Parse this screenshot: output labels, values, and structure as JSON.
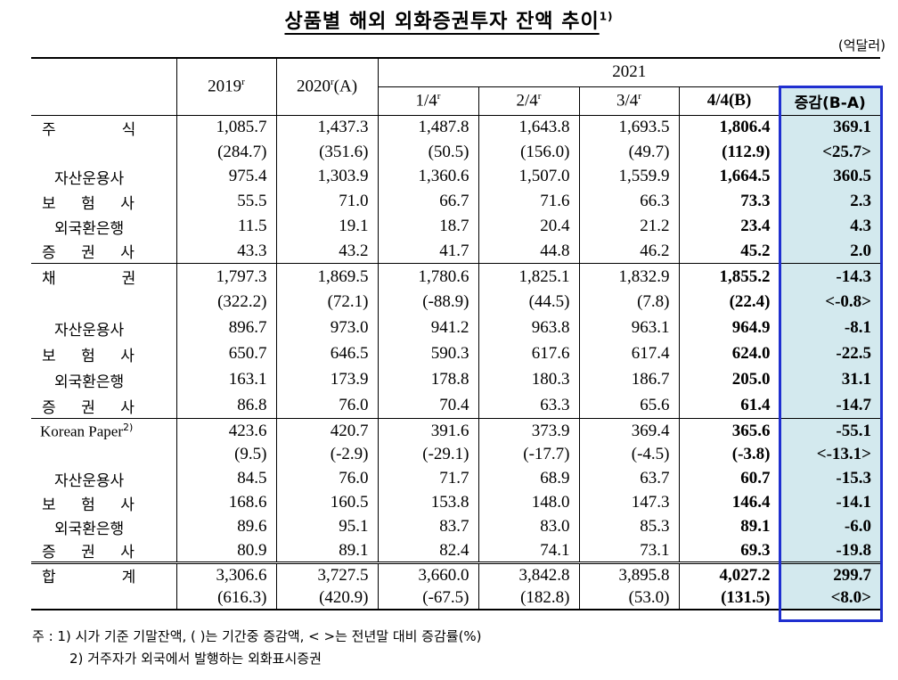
{
  "title": "상품별 해외 외화증권투자 잔액 추이",
  "title_note": "1)",
  "unit": "(억달러)",
  "header": {
    "y2019": "2019",
    "y2019_sup": "r",
    "y2020": "2020",
    "y2020_sup": "r",
    "y2020_suffix": "(A)",
    "y2021": "2021",
    "q1": "1/4",
    "q1_sup": "r",
    "q2": "2/4",
    "q2_sup": "r",
    "q3": "3/4",
    "q3_sup": "r",
    "q4": "4/4(B)",
    "diff": "증감(B-A)"
  },
  "highlight_color": "#1f2fd0",
  "groups": [
    {
      "rows": [
        {
          "label": "주식",
          "spread": true,
          "values": [
            "1,085.7",
            "1,437.3",
            "1,487.8",
            "1,643.8",
            "1,693.5",
            "1,806.4",
            "369.1"
          ]
        },
        {
          "label": "",
          "values": [
            "(284.7)",
            "(351.6)",
            "(50.5)",
            "(156.0)",
            "(49.7)",
            "(112.9)",
            "<25.7>"
          ]
        },
        {
          "label": "자산운용사",
          "values": [
            "975.4",
            "1,303.9",
            "1,360.6",
            "1,507.0",
            "1,559.9",
            "1,664.5",
            "360.5"
          ]
        },
        {
          "label": "보험사",
          "spread": true,
          "values": [
            "55.5",
            "71.0",
            "66.7",
            "71.6",
            "66.3",
            "73.3",
            "2.3"
          ]
        },
        {
          "label": "외국환은행",
          "values": [
            "11.5",
            "19.1",
            "18.7",
            "20.4",
            "21.2",
            "23.4",
            "4.3"
          ]
        },
        {
          "label": "증권사",
          "spread": true,
          "values": [
            "43.3",
            "43.2",
            "41.7",
            "44.8",
            "46.2",
            "45.2",
            "2.0"
          ]
        }
      ]
    },
    {
      "rows": [
        {
          "label": "채권",
          "spread": true,
          "values": [
            "1,797.3",
            "1,869.5",
            "1,780.6",
            "1,825.1",
            "1,832.9",
            "1,855.2",
            "-14.3"
          ]
        },
        {
          "label": "",
          "values": [
            "(322.2)",
            "(72.1)",
            "(-88.9)",
            "(44.5)",
            "(7.8)",
            "(22.4)",
            "<-0.8>"
          ]
        },
        {
          "label": "자산운용사",
          "values": [
            "896.7",
            "973.0",
            "941.2",
            "963.8",
            "963.1",
            "964.9",
            "-8.1"
          ]
        },
        {
          "label": "보험사",
          "spread": true,
          "values": [
            "650.7",
            "646.5",
            "590.3",
            "617.6",
            "617.4",
            "624.0",
            "-22.5"
          ]
        },
        {
          "label": "외국환은행",
          "values": [
            "163.1",
            "173.9",
            "178.8",
            "180.3",
            "186.7",
            "205.0",
            "31.1"
          ]
        },
        {
          "label": "증권사",
          "spread": true,
          "values": [
            "86.8",
            "76.0",
            "70.4",
            "63.3",
            "65.6",
            "61.4",
            "-14.7"
          ]
        }
      ]
    },
    {
      "rows": [
        {
          "label": "Korean Paper",
          "label_sup": "2)",
          "values": [
            "423.6",
            "420.7",
            "391.6",
            "373.9",
            "369.4",
            "365.6",
            "-55.1"
          ]
        },
        {
          "label": "",
          "values": [
            "(9.5)",
            "(-2.9)",
            "(-29.1)",
            "(-17.7)",
            "(-4.5)",
            "(-3.8)",
            "<-13.1>"
          ]
        },
        {
          "label": "자산운용사",
          "values": [
            "84.5",
            "76.0",
            "71.7",
            "68.9",
            "63.7",
            "60.7",
            "-15.3"
          ]
        },
        {
          "label": "보험사",
          "spread": true,
          "values": [
            "168.6",
            "160.5",
            "153.8",
            "148.0",
            "147.3",
            "146.4",
            "-14.1"
          ]
        },
        {
          "label": "외국환은행",
          "values": [
            "89.6",
            "95.1",
            "83.7",
            "83.0",
            "85.3",
            "89.1",
            "-6.0"
          ]
        },
        {
          "label": "증권사",
          "spread": true,
          "values": [
            "80.9",
            "89.1",
            "82.4",
            "74.1",
            "73.1",
            "69.3",
            "-19.8"
          ]
        }
      ]
    },
    {
      "total": true,
      "rows": [
        {
          "label": "합계",
          "spread": true,
          "values": [
            "3,306.6",
            "3,727.5",
            "3,660.0",
            "3,842.8",
            "3,895.8",
            "4,027.2",
            "299.7"
          ]
        },
        {
          "label": "",
          "values": [
            "(616.3)",
            "(420.9)",
            "(-67.5)",
            "(182.8)",
            "(53.0)",
            "(131.5)",
            "<8.0>"
          ]
        }
      ]
    }
  ],
  "notes": [
    "주 : 1) 시가 기준 기말잔액, (    )는 기간중 증감액, <  >는 전년말 대비 증감률(%)",
    "2) 거주자가 외국에서 발행하는 외화표시증권"
  ]
}
